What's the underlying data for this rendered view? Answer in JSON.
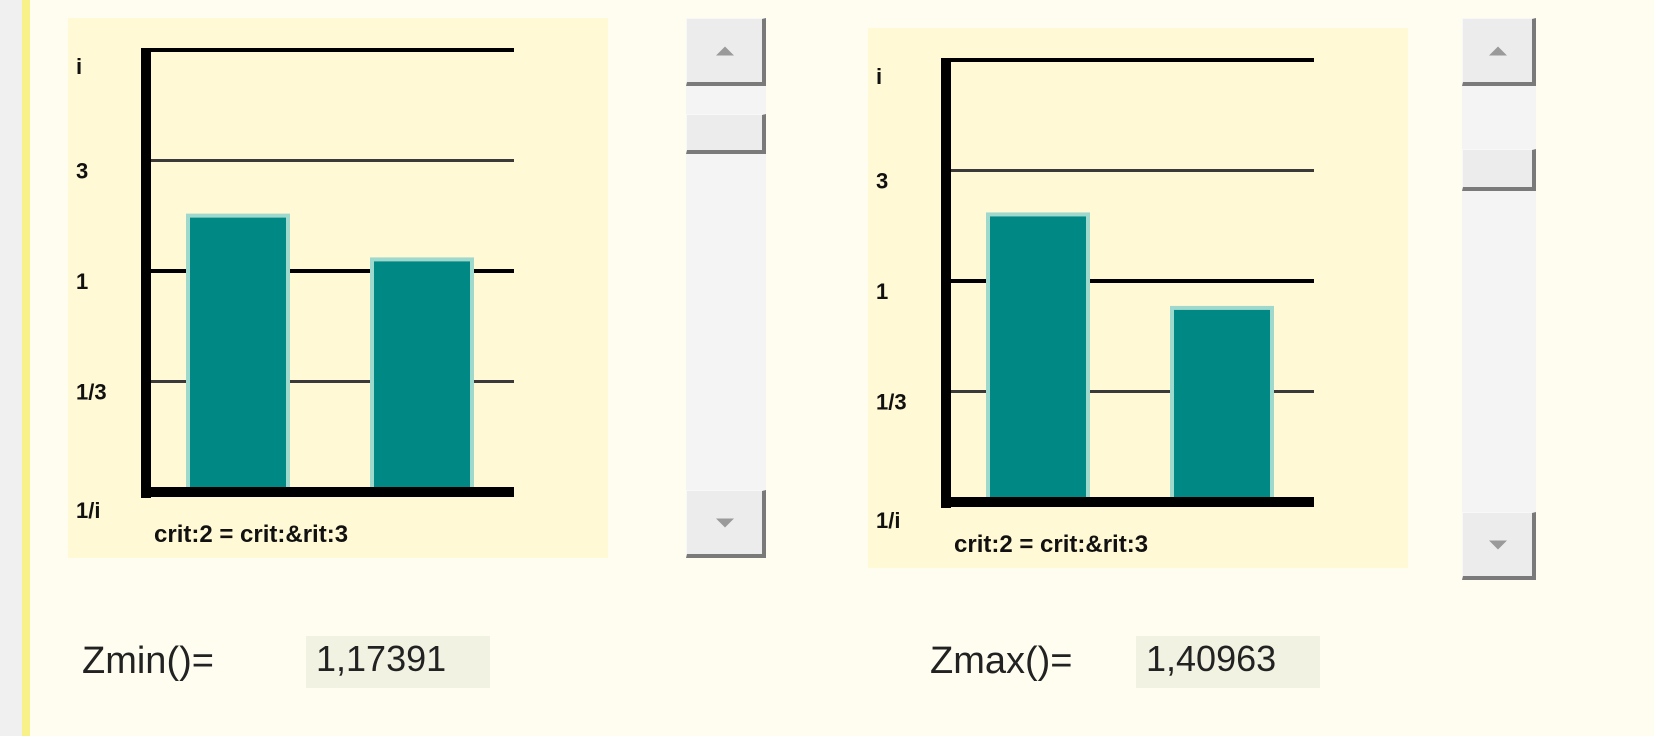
{
  "colors": {
    "bar": "#008885",
    "panel": "#fff9d5",
    "page": "#fffdf0",
    "accent": "#f8f088"
  },
  "chart_data": [
    {
      "type": "bar",
      "title": "",
      "xlabel": "crit:2 = crit:&rit:3",
      "ylabel": "",
      "y_scale": "log3",
      "y_ticks": [
        "i",
        "3",
        "1",
        "1/3",
        "1/i"
      ],
      "y_tick_values": [
        9,
        3,
        1,
        0.3333,
        0.1111
      ],
      "ylim": [
        0.1111,
        9
      ],
      "grid": true,
      "categories": [
        "",
        ""
      ],
      "values": [
        1.7,
        1.1
      ]
    },
    {
      "type": "bar",
      "title": "",
      "xlabel": "crit:2 = crit:&rit:3",
      "ylabel": "",
      "y_scale": "log3",
      "y_ticks": [
        "i",
        "3",
        "1",
        "1/3",
        "1/i"
      ],
      "y_tick_values": [
        9,
        3,
        1,
        0.3333,
        0.1111
      ],
      "ylim": [
        0.1111,
        9
      ],
      "grid": true,
      "categories": [
        "",
        ""
      ],
      "values": [
        1.9,
        0.75
      ]
    }
  ],
  "scrollbars": [
    {
      "up_icon": "arrow-up-icon",
      "down_icon": "arrow-down-icon",
      "position": 0.0
    },
    {
      "up_icon": "arrow-up-icon",
      "down_icon": "arrow-down-icon",
      "position": 0.1
    }
  ],
  "stats": {
    "zmin_label": "Zmin()=",
    "zmin_value": "1,17391",
    "zmax_label": "Zmax()=",
    "zmax_value": "1,40963"
  }
}
